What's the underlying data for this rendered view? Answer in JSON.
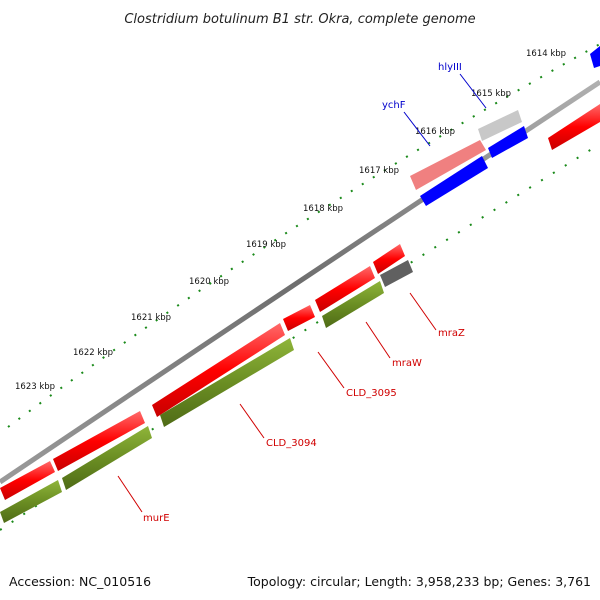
{
  "title": "Clostridium botulinum B1 str. Okra, complete genome",
  "footer": {
    "accession": "Accession: NC_010516",
    "summary": "Topology: circular; Length: 3,958,233 bp; Genes: 3,761"
  },
  "colors": {
    "backbone": "#7f7f7f",
    "cds": "#ff0000",
    "cds_light": "#f08080",
    "gene_green": "#6b8e23",
    "gene_gray": "#c0c0c0",
    "gene_dark": "#606060",
    "gene_blue": "#0000ff",
    "tick_green": "#1a8a1a",
    "label_red": "#d00000",
    "label_blue": "#0000cc"
  },
  "ticks": [
    {
      "kbp": 1614,
      "label": "1614 kbp"
    },
    {
      "kbp": 1615,
      "label": "1615 kbp"
    },
    {
      "kbp": 1616,
      "label": "1616 kbp"
    },
    {
      "kbp": 1617,
      "label": "1617 kbp"
    },
    {
      "kbp": 1618,
      "label": "1618 kbp"
    },
    {
      "kbp": 1619,
      "label": "1619 kbp"
    },
    {
      "kbp": 1620,
      "label": "1620 kbp"
    },
    {
      "kbp": 1621,
      "label": "1621 kbp"
    },
    {
      "kbp": 1622,
      "label": "1622 kbp"
    },
    {
      "kbp": 1623,
      "label": "1623 kbp"
    }
  ],
  "labels": [
    {
      "name": "murE",
      "color": "red"
    },
    {
      "name": "CLD_3094",
      "color": "red"
    },
    {
      "name": "CLD_3095",
      "color": "red"
    },
    {
      "name": "mraW",
      "color": "red"
    },
    {
      "name": "mraZ",
      "color": "red"
    },
    {
      "name": "ychF",
      "color": "blue"
    },
    {
      "name": "hlyIII",
      "color": "blue"
    }
  ]
}
